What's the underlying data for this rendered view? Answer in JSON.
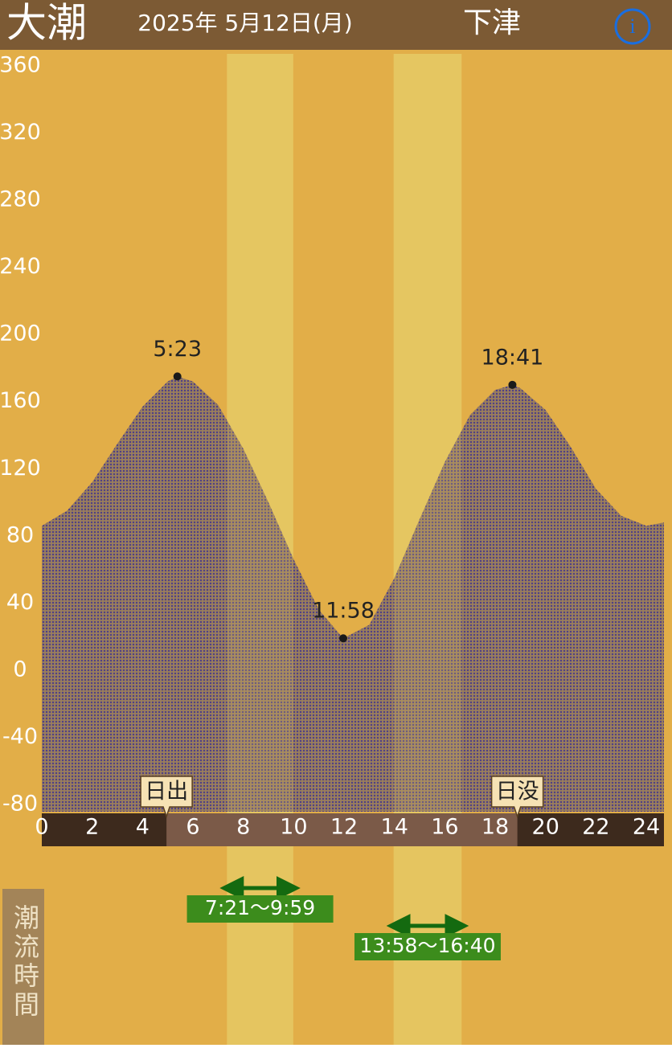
{
  "header": {
    "tide_type": "大潮",
    "date": "2025年 5月12日(月)",
    "location": "下津"
  },
  "chart_data": {
    "type": "area",
    "x": [
      0,
      1,
      2,
      3,
      4,
      5,
      5.383,
      6,
      7,
      8,
      9,
      10,
      11,
      11.967,
      13,
      14,
      15,
      16,
      17,
      18,
      18.683,
      19,
      20,
      21,
      22,
      23,
      24,
      24.7
    ],
    "values": [
      86,
      95,
      112,
      135,
      157,
      172,
      175,
      172,
      158,
      132,
      100,
      66,
      36,
      19,
      27,
      55,
      90,
      124,
      152,
      167,
      170,
      168,
      155,
      133,
      108,
      92,
      86,
      88
    ],
    "xlim": [
      0,
      24.7
    ],
    "xticks": [
      0,
      2,
      4,
      6,
      8,
      10,
      12,
      14,
      16,
      18,
      20,
      22,
      24
    ],
    "ylim": [
      -80,
      360
    ],
    "yticks": [
      -80,
      -40,
      0,
      40,
      80,
      120,
      160,
      200,
      240,
      280,
      320,
      360
    ],
    "extremes": [
      {
        "x": 5.383,
        "value": 175,
        "label": "5:23"
      },
      {
        "x": 11.967,
        "value": 19,
        "label": "11:58"
      },
      {
        "x": 18.683,
        "value": 170,
        "label": "18:41"
      }
    ],
    "sunrise": {
      "label": "日出",
      "x": 4.95
    },
    "sunset": {
      "label": "日没",
      "x": 18.88
    },
    "flow_title": "潮流時間",
    "flow_periods": [
      {
        "start": 7.35,
        "end": 9.983,
        "label": "7:21〜9:59"
      },
      {
        "start": 13.967,
        "end": 16.667,
        "label": "13:58〜16:40"
      }
    ]
  }
}
